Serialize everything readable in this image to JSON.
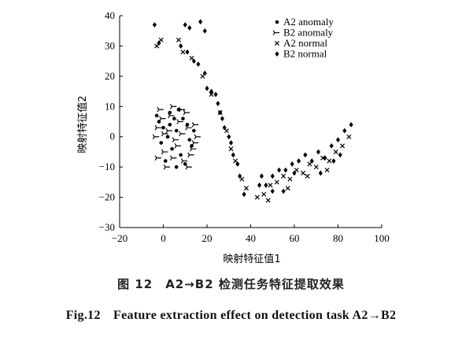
{
  "chart_data": {
    "type": "scatter",
    "xlabel": "映射特征值1",
    "ylabel": "映射特征值2",
    "xlim": [
      -20,
      100
    ],
    "ylim": [
      -30,
      40
    ],
    "xticks": [
      -20,
      0,
      20,
      40,
      60,
      80,
      100
    ],
    "yticks": [
      -30,
      -20,
      -10,
      0,
      10,
      20,
      30,
      40
    ],
    "legend_position": "top-right",
    "series": [
      {
        "name": "A2 anomaly",
        "marker": "dot",
        "points": [
          [
            -2,
            5
          ],
          [
            0,
            3
          ],
          [
            3,
            8
          ],
          [
            6,
            2
          ],
          [
            9,
            6
          ],
          [
            12,
            -1
          ],
          [
            4,
            -4
          ],
          [
            1,
            -8
          ],
          [
            8,
            -6
          ],
          [
            11,
            4
          ],
          [
            -1,
            -2
          ],
          [
            5,
            6
          ],
          [
            14,
            2
          ],
          [
            7,
            9
          ],
          [
            2,
            0
          ],
          [
            10,
            -9
          ],
          [
            13,
            -3
          ],
          [
            -3,
            7
          ],
          [
            6,
            -10
          ],
          [
            3,
            4
          ]
        ]
      },
      {
        "name": "B2 anomaly",
        "marker": "tri",
        "points": [
          [
            -3,
            0
          ],
          [
            -1,
            9
          ],
          [
            1,
            -5
          ],
          [
            3,
            2
          ],
          [
            5,
            10
          ],
          [
            7,
            -3
          ],
          [
            9,
            1
          ],
          [
            11,
            8
          ],
          [
            13,
            -6
          ],
          [
            15,
            4
          ],
          [
            -2,
            -7
          ],
          [
            0,
            6
          ],
          [
            2,
            -10
          ],
          [
            4,
            7
          ],
          [
            6,
            -1
          ],
          [
            8,
            5
          ],
          [
            10,
            -8
          ],
          [
            12,
            3
          ],
          [
            14,
            -4
          ],
          [
            16,
            0
          ],
          [
            -2,
            3
          ],
          [
            1,
            1
          ],
          [
            5,
            -7
          ],
          [
            9,
            9
          ],
          [
            12,
            -10
          ],
          [
            15,
            -2
          ]
        ]
      },
      {
        "name": "A2 normal",
        "marker": "x",
        "points": [
          [
            -3,
            30
          ],
          [
            -1,
            32
          ],
          [
            7,
            32
          ],
          [
            9,
            28
          ],
          [
            13,
            26
          ],
          [
            18,
            20
          ],
          [
            22,
            14
          ],
          [
            26,
            8
          ],
          [
            29,
            2
          ],
          [
            31,
            -4
          ],
          [
            33,
            -8
          ],
          [
            36,
            -14
          ],
          [
            38,
            -17
          ],
          [
            43,
            -20
          ],
          [
            46,
            -19
          ],
          [
            49,
            -16
          ],
          [
            52,
            -15
          ],
          [
            55,
            -13
          ],
          [
            58,
            -14
          ],
          [
            61,
            -11
          ],
          [
            64,
            -12
          ],
          [
            67,
            -9
          ],
          [
            70,
            -10
          ],
          [
            73,
            -7
          ],
          [
            76,
            -8
          ],
          [
            79,
            -5
          ],
          [
            82,
            -3
          ],
          [
            85,
            0
          ],
          [
            48,
            -21
          ],
          [
            57,
            -17
          ],
          [
            66,
            -13
          ],
          [
            75,
            -11
          ]
        ]
      },
      {
        "name": "B2 normal",
        "marker": "diamond",
        "points": [
          [
            -4,
            37
          ],
          [
            -2,
            31
          ],
          [
            10,
            37
          ],
          [
            12,
            36
          ],
          [
            17,
            38
          ],
          [
            19,
            35
          ],
          [
            8,
            30
          ],
          [
            11,
            28
          ],
          [
            14,
            25
          ],
          [
            16,
            24
          ],
          [
            19,
            21
          ],
          [
            20,
            16
          ],
          [
            22,
            15
          ],
          [
            24,
            14
          ],
          [
            25,
            11
          ],
          [
            26,
            8
          ],
          [
            27,
            6
          ],
          [
            28,
            3
          ],
          [
            30,
            0
          ],
          [
            31,
            -2
          ],
          [
            32,
            -6
          ],
          [
            34,
            -9
          ],
          [
            35,
            -13
          ],
          [
            37,
            -19
          ],
          [
            44,
            -16
          ],
          [
            45,
            -13
          ],
          [
            47,
            -16
          ],
          [
            50,
            -13
          ],
          [
            53,
            -11
          ],
          [
            56,
            -11
          ],
          [
            59,
            -9
          ],
          [
            62,
            -8
          ],
          [
            65,
            -6
          ],
          [
            68,
            -8
          ],
          [
            71,
            -5
          ],
          [
            74,
            -7
          ],
          [
            77,
            -3
          ],
          [
            80,
            -1
          ],
          [
            83,
            2
          ],
          [
            86,
            4
          ],
          [
            81,
            -6
          ],
          [
            78,
            -8
          ],
          [
            72,
            -12
          ],
          [
            60,
            -12
          ],
          [
            55,
            -18
          ],
          [
            50,
            -18
          ]
        ]
      }
    ]
  },
  "captions": {
    "cn": "图 12　A2→B2 检测任务特征提取效果",
    "en": "Fig.12　Feature extraction effect on detection task A2→B2"
  }
}
